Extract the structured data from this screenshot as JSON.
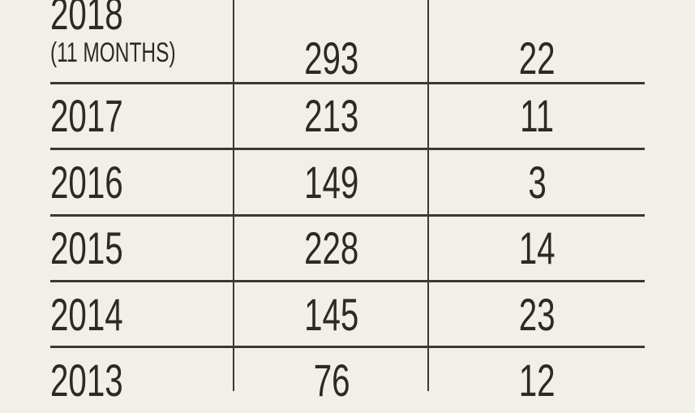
{
  "table": {
    "rows": [
      {
        "year": "2018",
        "note": "(11 MONTHS)",
        "col2": "293",
        "col3": "22"
      },
      {
        "year": "2017",
        "col2": "213",
        "col3": "11"
      },
      {
        "year": "2016",
        "col2": "149",
        "col3": "3"
      },
      {
        "year": "2015",
        "col2": "228",
        "col3": "14"
      },
      {
        "year": "2014",
        "col2": "145",
        "col3": "23"
      },
      {
        "year": "2013",
        "col2": "76",
        "col3": "12"
      }
    ]
  },
  "colors": {
    "background": "#f2efe8",
    "text": "#2b2a28",
    "rules": "#3a3936"
  }
}
